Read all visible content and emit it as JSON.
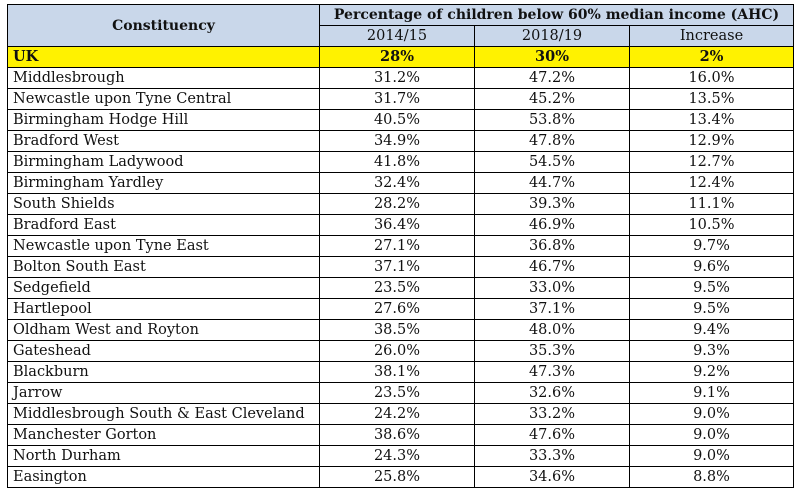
{
  "header": {
    "constituency": "Constituency",
    "measure": "Percentage of children below 60% median income (AHC)",
    "col_2014": "2014/15",
    "col_2018": "2018/19",
    "col_increase": "Increase"
  },
  "uk_row": {
    "name": "UK",
    "y2014": "28%",
    "y2018": "30%",
    "increase": "2%"
  },
  "rows": [
    {
      "name": "Middlesbrough",
      "y2014": "31.2%",
      "y2018": "47.2%",
      "increase": "16.0%"
    },
    {
      "name": "Newcastle upon Tyne Central",
      "y2014": "31.7%",
      "y2018": "45.2%",
      "increase": "13.5%"
    },
    {
      "name": "Birmingham Hodge Hill",
      "y2014": "40.5%",
      "y2018": "53.8%",
      "increase": "13.4%"
    },
    {
      "name": "Bradford West",
      "y2014": "34.9%",
      "y2018": "47.8%",
      "increase": "12.9%"
    },
    {
      "name": "Birmingham Ladywood",
      "y2014": "41.8%",
      "y2018": "54.5%",
      "increase": "12.7%"
    },
    {
      "name": "Birmingham Yardley",
      "y2014": "32.4%",
      "y2018": "44.7%",
      "increase": "12.4%"
    },
    {
      "name": "South Shields",
      "y2014": "28.2%",
      "y2018": "39.3%",
      "increase": "11.1%"
    },
    {
      "name": "Bradford East",
      "y2014": "36.4%",
      "y2018": "46.9%",
      "increase": "10.5%"
    },
    {
      "name": "Newcastle upon Tyne East",
      "y2014": "27.1%",
      "y2018": "36.8%",
      "increase": "9.7%"
    },
    {
      "name": "Bolton South East",
      "y2014": "37.1%",
      "y2018": "46.7%",
      "increase": "9.6%"
    },
    {
      "name": "Sedgefield",
      "y2014": "23.5%",
      "y2018": "33.0%",
      "increase": "9.5%"
    },
    {
      "name": "Hartlepool",
      "y2014": "27.6%",
      "y2018": "37.1%",
      "increase": "9.5%"
    },
    {
      "name": "Oldham West and Royton",
      "y2014": "38.5%",
      "y2018": "48.0%",
      "increase": "9.4%"
    },
    {
      "name": "Gateshead",
      "y2014": "26.0%",
      "y2018": "35.3%",
      "increase": "9.3%"
    },
    {
      "name": "Blackburn",
      "y2014": "38.1%",
      "y2018": "47.3%",
      "increase": "9.2%"
    },
    {
      "name": "Jarrow",
      "y2014": "23.5%",
      "y2018": "32.6%",
      "increase": "9.1%"
    },
    {
      "name": "Middlesbrough South & East Cleveland",
      "y2014": "24.2%",
      "y2018": "33.2%",
      "increase": "9.0%"
    },
    {
      "name": "Manchester Gorton",
      "y2014": "38.6%",
      "y2018": "47.6%",
      "increase": "9.0%"
    },
    {
      "name": "North Durham",
      "y2014": "24.3%",
      "y2018": "33.3%",
      "increase": "9.0%"
    },
    {
      "name": "Easington",
      "y2014": "25.8%",
      "y2018": "34.6%",
      "increase": "8.8%"
    }
  ],
  "colors": {
    "header_bg": "#c9d7ea",
    "uk_highlight": "#fff200"
  }
}
